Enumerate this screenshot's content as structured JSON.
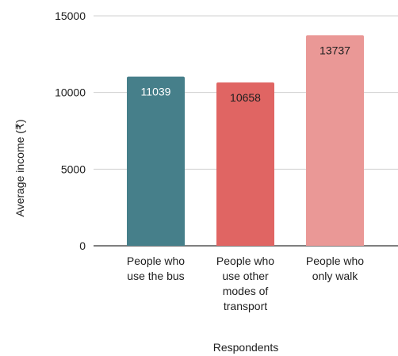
{
  "chart_data": {
    "type": "bar",
    "categories": [
      [
        "People who",
        "use the bus"
      ],
      [
        "People who",
        "use other",
        "modes of",
        "transport"
      ],
      [
        "People who",
        "only walk"
      ]
    ],
    "values": [
      11039,
      10658,
      13737
    ],
    "data_labels": [
      "11039",
      "10658",
      "13737"
    ],
    "bar_colors": [
      "#467f8a",
      "#e06563",
      "#ea9896"
    ],
    "label_colors": [
      "#ffffff",
      "#202020",
      "#202020"
    ],
    "xlabel": "Respondents",
    "ylabel": "Average income (₹)",
    "ylim": [
      0,
      15000
    ],
    "yticks": [
      0,
      5000,
      10000,
      15000
    ],
    "ytick_labels": [
      "0",
      "5000",
      "10000",
      "15000"
    ],
    "grid": true,
    "legend": "none"
  }
}
